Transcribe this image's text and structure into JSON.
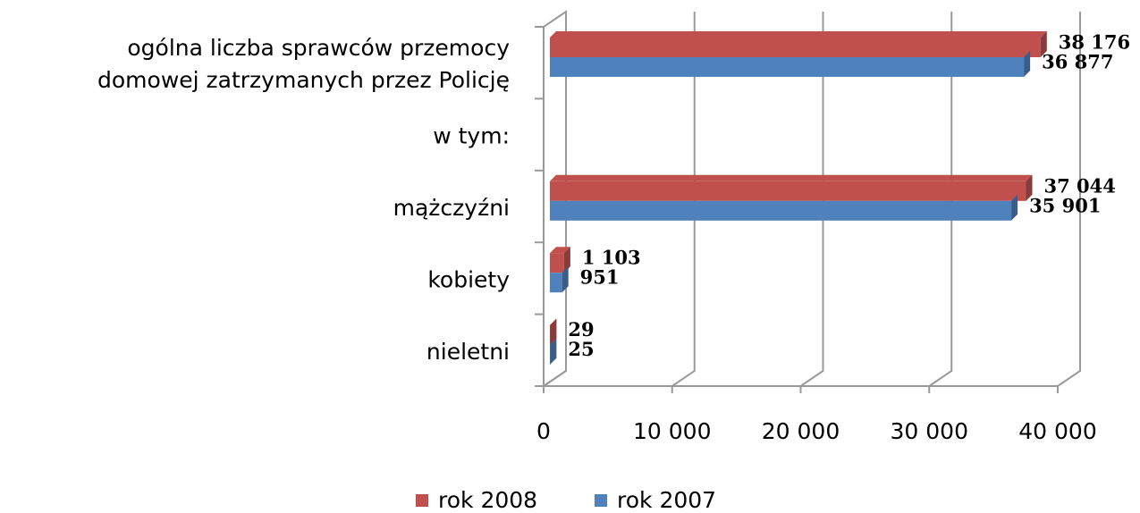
{
  "chart_data": {
    "type": "bar",
    "orientation": "horizontal",
    "categories": [
      [
        "ogólna liczba sprawców przemocy",
        "domowej zatrzymanych przez Policję"
      ],
      "w tym:",
      "mążczyźni",
      "kobiety",
      "nieletni"
    ],
    "series": [
      {
        "name": "rok 2008",
        "color": "#c0504d",
        "values": [
          38176,
          null,
          37044,
          1103,
          29
        ],
        "value_labels": [
          "38 176",
          null,
          "37 044",
          "1 103",
          "29"
        ]
      },
      {
        "name": "rok 2007",
        "color": "#4f81bd",
        "values": [
          36877,
          null,
          35901,
          951,
          25
        ],
        "value_labels": [
          "36 877",
          null,
          "35 901",
          "951",
          "25"
        ]
      }
    ],
    "xlim": [
      0,
      40000
    ],
    "xticks": [
      0,
      {
        "value": 10000,
        "label": "10 000"
      },
      {
        "value": 20000,
        "label": "20 000"
      },
      {
        "value": 30000,
        "label": "30 000"
      },
      {
        "value": 40000,
        "label": "40 000"
      }
    ],
    "grid": true,
    "legend": "bottom"
  }
}
